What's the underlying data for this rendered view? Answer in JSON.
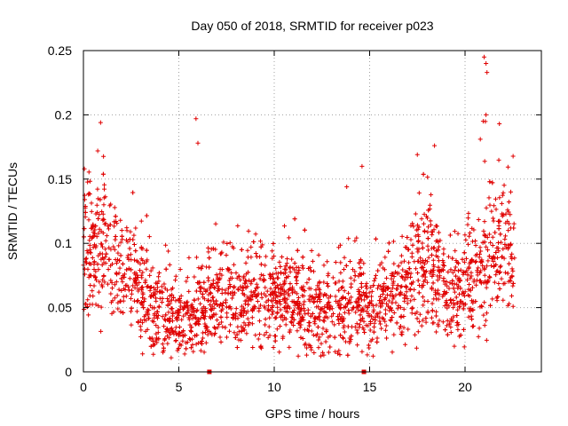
{
  "chart_data": {
    "type": "scatter",
    "title": "Day 050 of 2018, SRMTID for receiver p023",
    "xlabel": "GPS time / hours",
    "ylabel": "SRMTID / TECUs",
    "xlim": [
      0,
      24
    ],
    "ylim": [
      0,
      0.25
    ],
    "xticks": [
      0,
      5,
      10,
      15,
      20
    ],
    "xtick_labels": [
      "0",
      "5",
      "10",
      "15",
      "20"
    ],
    "yticks": [
      0,
      0.05,
      0.1,
      0.15,
      0.2,
      0.25
    ],
    "ytick_labels": [
      "0",
      "0.05",
      "0.1",
      "0.15",
      "0.2",
      "0.25"
    ],
    "grid": true,
    "marker": "+",
    "series_color": "#e00000",
    "envelope": {
      "description": "approximate per-hour central level and spread of the scatter cloud",
      "hours": [
        0,
        0.5,
        1,
        1.5,
        2,
        2.5,
        3,
        3.5,
        4,
        4.5,
        5,
        5.5,
        6,
        6.5,
        7,
        7.5,
        8,
        8.5,
        9,
        9.5,
        10,
        10.5,
        11,
        11.5,
        12,
        12.5,
        13,
        13.5,
        14,
        14.5,
        15,
        15.5,
        16,
        16.5,
        17,
        17.5,
        18,
        18.5,
        19,
        19.5,
        20,
        20.5,
        21,
        21.5,
        22,
        22.6
      ],
      "center": [
        0.095,
        0.09,
        0.1,
        0.09,
        0.08,
        0.075,
        0.065,
        0.055,
        0.05,
        0.04,
        0.04,
        0.045,
        0.05,
        0.055,
        0.058,
        0.06,
        0.06,
        0.06,
        0.06,
        0.058,
        0.057,
        0.056,
        0.055,
        0.053,
        0.05,
        0.048,
        0.048,
        0.05,
        0.055,
        0.058,
        0.05,
        0.052,
        0.058,
        0.065,
        0.07,
        0.08,
        0.085,
        0.075,
        0.06,
        0.06,
        0.075,
        0.07,
        0.085,
        0.095,
        0.1,
        0.09
      ],
      "spread": [
        0.025,
        0.025,
        0.03,
        0.025,
        0.025,
        0.022,
        0.022,
        0.02,
        0.02,
        0.017,
        0.017,
        0.018,
        0.02,
        0.02,
        0.02,
        0.02,
        0.02,
        0.02,
        0.02,
        0.02,
        0.02,
        0.02,
        0.02,
        0.02,
        0.018,
        0.018,
        0.018,
        0.02,
        0.022,
        0.022,
        0.018,
        0.018,
        0.02,
        0.022,
        0.025,
        0.028,
        0.028,
        0.025,
        0.02,
        0.022,
        0.025,
        0.025,
        0.03,
        0.03,
        0.028,
        0.025
      ]
    },
    "outliers": [
      {
        "x": 0.05,
        "y": 0.158
      },
      {
        "x": 0.9,
        "y": 0.194
      },
      {
        "x": 0.75,
        "y": 0.172
      },
      {
        "x": 5.9,
        "y": 0.197
      },
      {
        "x": 6.0,
        "y": 0.178
      },
      {
        "x": 14.6,
        "y": 0.16
      },
      {
        "x": 13.8,
        "y": 0.144
      },
      {
        "x": 17.5,
        "y": 0.169
      },
      {
        "x": 18.4,
        "y": 0.176
      },
      {
        "x": 21.0,
        "y": 0.245
      },
      {
        "x": 21.1,
        "y": 0.24
      },
      {
        "x": 21.15,
        "y": 0.233
      },
      {
        "x": 21.1,
        "y": 0.2
      },
      {
        "x": 20.8,
        "y": 0.181
      },
      {
        "x": 21.8,
        "y": 0.193
      },
      {
        "x": 3.1,
        "y": 0.014
      },
      {
        "x": 4.6,
        "y": 0.011
      },
      {
        "x": 11.7,
        "y": 0.013
      },
      {
        "x": 12.6,
        "y": 0.013
      }
    ],
    "gap_markers": [
      {
        "x": 6.6,
        "y": 0
      },
      {
        "x": 14.7,
        "y": 0
      }
    ]
  }
}
